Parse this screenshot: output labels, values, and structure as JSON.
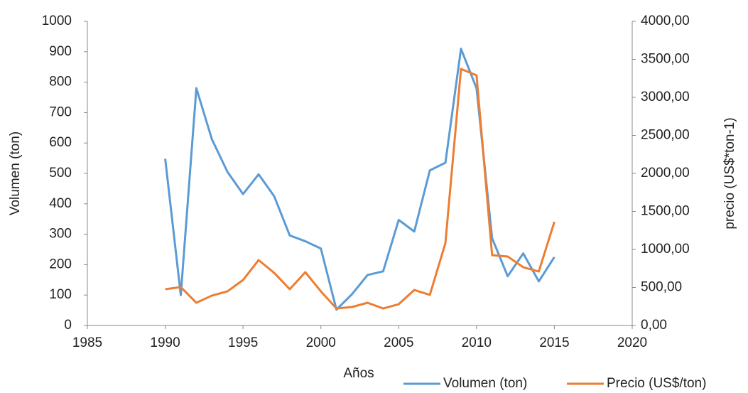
{
  "chart_data": {
    "type": "line",
    "x_label": "Años",
    "y_label": "Volumen (ton)",
    "y2_label": "precio (US$*ton-1)",
    "x": [
      1990,
      1991,
      1992,
      1993,
      1994,
      1995,
      1996,
      1997,
      1998,
      1999,
      2000,
      2001,
      2002,
      2003,
      2004,
      2005,
      2006,
      2007,
      2008,
      2009,
      2010,
      2011,
      2012,
      2013,
      2014,
      2015
    ],
    "series": [
      {
        "name": "Volumen (ton)",
        "color": "#5b9bd5",
        "values": [
          548,
          100,
          780,
          612,
          505,
          432,
          497,
          425,
          296,
          277,
          253,
          52,
          103,
          166,
          178,
          347,
          309,
          510,
          535,
          910,
          780,
          287,
          162,
          237,
          145,
          225
        ]
      },
      {
        "name": "Precio (US$/ton)",
        "color": "#ed7d31",
        "axis": "y2",
        "values": [
          477,
          505,
          299,
          393,
          449,
          598,
          860,
          692,
          477,
          701,
          449,
          224,
          243,
          299,
          224,
          280,
          467,
          402,
          1084,
          3374,
          3290,
          925,
          907,
          766,
          710,
          1364
        ]
      }
    ],
    "xlim": [
      1985,
      2020
    ],
    "xticks": [
      1985,
      1990,
      1995,
      2000,
      2005,
      2010,
      2015,
      2020
    ],
    "ylim": [
      0,
      1000
    ],
    "yticks": [
      0,
      100,
      200,
      300,
      400,
      500,
      600,
      700,
      800,
      900,
      1000
    ],
    "y2lim": [
      0,
      4000
    ],
    "y2ticks": [
      {
        "value": 0,
        "label": "0,00"
      },
      {
        "value": 500,
        "label": "500,00"
      },
      {
        "value": 1000,
        "label": "1000,00"
      },
      {
        "value": 1500,
        "label": "1500,00"
      },
      {
        "value": 2000,
        "label": "2000,00"
      },
      {
        "value": 2500,
        "label": "2500,00"
      },
      {
        "value": 3000,
        "label": "3000,00"
      },
      {
        "value": 3500,
        "label": "3500,00"
      },
      {
        "value": 4000,
        "label": "4000,00"
      }
    ],
    "grid": false,
    "legend": "bottom-right"
  }
}
